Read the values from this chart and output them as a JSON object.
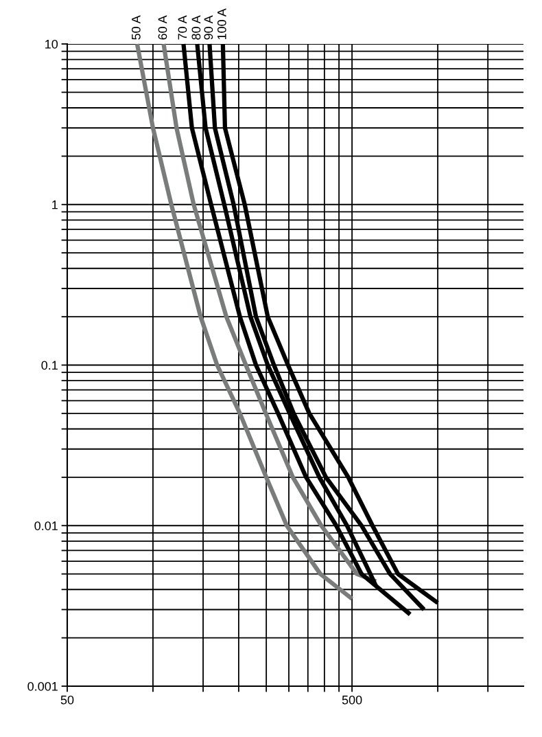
{
  "chart_data": {
    "type": "line",
    "log": "xy",
    "grid": true,
    "marker": "none",
    "line_style": "solid",
    "xlim": [
      50,
      2000
    ],
    "ylim": [
      0.001,
      10
    ],
    "xticks": [
      50,
      {
        "value": 100,
        "label": null
      },
      {
        "value": 150,
        "label": null
      },
      {
        "value": 200,
        "label": null
      },
      {
        "value": 250,
        "label": null
      },
      {
        "value": 300,
        "label": null
      },
      {
        "value": 350,
        "label": null
      },
      {
        "value": 400,
        "label": null
      },
      {
        "value": 450,
        "label": null
      },
      500,
      {
        "value": 1000,
        "label": null
      },
      {
        "value": 1500,
        "label": null
      }
    ],
    "yticks": [
      0.001,
      {
        "value": 0.002,
        "label": null
      },
      {
        "value": 0.003,
        "label": null
      },
      {
        "value": 0.004,
        "label": null
      },
      {
        "value": 0.005,
        "label": null
      },
      {
        "value": 0.006,
        "label": null
      },
      {
        "value": 0.007,
        "label": null
      },
      {
        "value": 0.008,
        "label": null
      },
      {
        "value": 0.009,
        "label": null
      },
      0.01,
      {
        "value": 0.02,
        "label": null
      },
      {
        "value": 0.03,
        "label": null
      },
      {
        "value": 0.04,
        "label": null
      },
      {
        "value": 0.05,
        "label": null
      },
      {
        "value": 0.06,
        "label": null
      },
      {
        "value": 0.07,
        "label": null
      },
      {
        "value": 0.08,
        "label": null
      },
      {
        "value": 0.09,
        "label": null
      },
      0.1,
      {
        "value": 0.2,
        "label": null
      },
      {
        "value": 0.3,
        "label": null
      },
      {
        "value": 0.4,
        "label": null
      },
      {
        "value": 0.5,
        "label": null
      },
      {
        "value": 0.6,
        "label": null
      },
      {
        "value": 0.7,
        "label": null
      },
      {
        "value": 0.8,
        "label": null
      },
      {
        "value": 0.9,
        "label": null
      },
      1,
      {
        "value": 2,
        "label": null
      },
      {
        "value": 3,
        "label": null
      },
      {
        "value": 4,
        "label": null
      },
      {
        "value": 5,
        "label": null
      },
      {
        "value": 6,
        "label": null
      },
      {
        "value": 7,
        "label": null
      },
      {
        "value": 8,
        "label": null
      },
      {
        "value": 9,
        "label": null
      },
      10
    ],
    "series": [
      {
        "name": "50 A",
        "color": "#7a7c7c",
        "x": [
          88,
          100,
          116,
          147,
          168,
          202,
          250,
          295,
          387,
          500
        ],
        "values": [
          10,
          3,
          1,
          0.2,
          0.1,
          0.05,
          0.02,
          0.01,
          0.005,
          0.0035
        ]
      },
      {
        "name": "60 A",
        "color": "#7a7c7c",
        "x": [
          109,
          121,
          139,
          181,
          212,
          249,
          310,
          390,
          520,
          607
        ],
        "values": [
          10,
          3,
          1,
          0.2,
          0.1,
          0.05,
          0.02,
          0.01,
          0.005,
          0.0045
        ]
      },
      {
        "name": "70 A",
        "color": "#000000",
        "x": [
          128,
          137,
          160,
          202,
          230,
          275,
          345,
          440,
          540,
          800
        ],
        "values": [
          10,
          3,
          1,
          0.2,
          0.1,
          0.05,
          0.02,
          0.01,
          0.005,
          0.0028
        ]
      },
      {
        "name": "80 A",
        "color": "#000000",
        "x": [
          143,
          153,
          178,
          220,
          253,
          302,
          384,
          480,
          580,
          607
        ],
        "values": [
          10,
          3,
          1,
          0.2,
          0.1,
          0.05,
          0.02,
          0.01,
          0.005,
          0.0042
        ]
      },
      {
        "name": "90 A",
        "color": "#000000",
        "x": [
          158,
          165,
          192,
          230,
          266,
          312,
          405,
          540,
          680,
          895
        ],
        "values": [
          10,
          3,
          1,
          0.2,
          0.1,
          0.05,
          0.02,
          0.01,
          0.005,
          0.003
        ]
      },
      {
        "name": "100 A",
        "color": "#000000",
        "x": [
          176,
          179,
          210,
          253,
          298,
          354,
          485,
          590,
          725,
          1000
        ],
        "values": [
          10,
          3,
          1,
          0.2,
          0.1,
          0.05,
          0.02,
          0.01,
          0.005,
          0.0033
        ]
      }
    ]
  }
}
